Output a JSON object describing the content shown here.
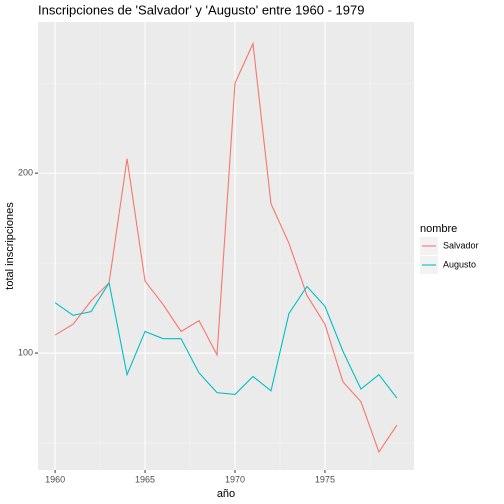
{
  "chart_data": {
    "type": "line",
    "title": "Inscripciones de 'Salvador' y 'Augusto' entre 1960 - 1979",
    "x_label": "año",
    "y_label": "total inscripciones",
    "x": [
      1960,
      1961,
      1962,
      1963,
      1964,
      1965,
      1966,
      1967,
      1968,
      1969,
      1970,
      1971,
      1972,
      1973,
      1974,
      1975,
      1976,
      1977,
      1978,
      1979
    ],
    "series": [
      {
        "name": "Salvador",
        "color": "#f8766d",
        "values": [
          110,
          116,
          129,
          139,
          208,
          140,
          127,
          112,
          118,
          99,
          250,
          272,
          183,
          161,
          132,
          116,
          84,
          73,
          45,
          60
        ]
      },
      {
        "name": "Augusto",
        "color": "#00bfc4",
        "values": [
          128,
          121,
          123,
          139,
          88,
          112,
          108,
          108,
          89,
          78,
          77,
          87,
          79,
          122,
          137,
          126,
          101,
          80,
          88,
          75
        ]
      }
    ],
    "xlim": [
      1959.05,
      1979.95
    ],
    "xticks": [
      1960,
      1965,
      1970,
      1975
    ],
    "ylim": [
      35,
      284
    ],
    "yticks": [
      100,
      200
    ],
    "legend_title": "nombre",
    "legend_position": "right",
    "grid": true
  }
}
